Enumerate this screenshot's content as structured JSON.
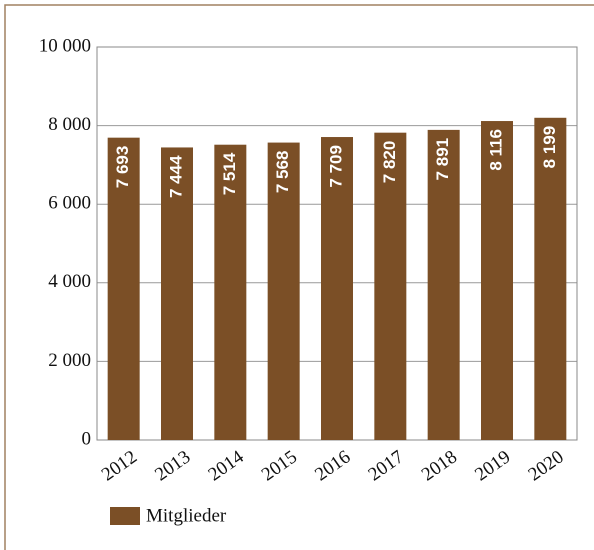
{
  "chart_data": {
    "type": "bar",
    "categories": [
      "2012",
      "2013",
      "2014",
      "2015",
      "2016",
      "2017",
      "2018",
      "2019",
      "2020"
    ],
    "series": [
      {
        "name": "Mitglieder",
        "color": "#7b4f26",
        "values": [
          7693,
          7444,
          7514,
          7568,
          7709,
          7820,
          7891,
          8116,
          8199
        ],
        "value_labels": [
          "7 693",
          "7 444",
          "7 514",
          "7 568",
          "7 709",
          "7 820",
          "7 891",
          "8 116",
          "8 199"
        ]
      }
    ],
    "ylim": [
      0,
      10000
    ],
    "yticks": [
      0,
      {
        "value": 2000,
        "label": "2 000"
      },
      {
        "value": 4000,
        "label": "4 000"
      },
      {
        "value": 6000,
        "label": "6 000"
      },
      {
        "value": 8000,
        "label": "8 000"
      },
      {
        "value": 10000,
        "label": "10 000"
      }
    ],
    "grid": true,
    "legend": "bottom-left"
  }
}
